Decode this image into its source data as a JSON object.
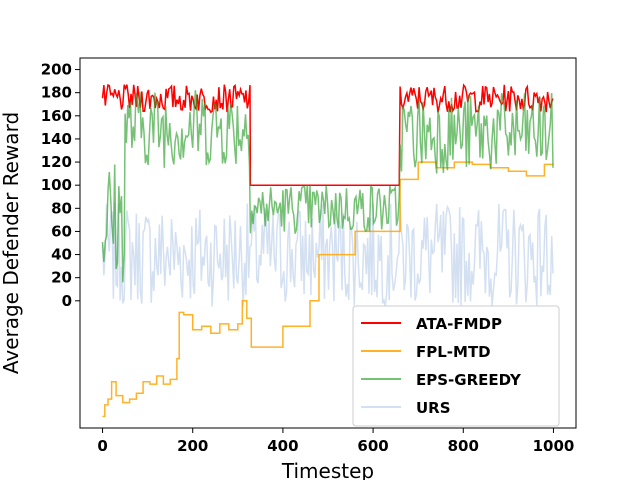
{
  "chart_data": {
    "type": "line",
    "title": "",
    "xlabel": "Timestep",
    "ylabel": "Average Defender Reward",
    "xlim": [
      -50,
      1050
    ],
    "ylim": [
      -110,
      210
    ],
    "x_ticks": [
      0,
      200,
      400,
      600,
      800,
      1000
    ],
    "y_ticks": [
      0,
      20,
      40,
      60,
      80,
      100,
      120,
      140,
      160,
      180,
      200
    ],
    "grid": false,
    "legend_position": "lower-right",
    "series": [
      {
        "name": "ATA-FMDP",
        "color": "#ff0000",
        "segments": [
          {
            "x_start": 0,
            "x_end": 328,
            "mean": 175,
            "noise": 12
          },
          {
            "x_start": 328,
            "x_end": 660,
            "mean": 100,
            "noise": 0
          },
          {
            "x_start": 660,
            "x_end": 1000,
            "mean": 175,
            "noise": 12
          }
        ]
      },
      {
        "name": "FPL-MTD",
        "color": "#ffa500",
        "points": [
          [
            0,
            -100
          ],
          [
            5,
            -90
          ],
          [
            12,
            -85
          ],
          [
            20,
            -70
          ],
          [
            30,
            -82
          ],
          [
            45,
            -88
          ],
          [
            60,
            -85
          ],
          [
            75,
            -80
          ],
          [
            90,
            -70
          ],
          [
            105,
            -72
          ],
          [
            120,
            -65
          ],
          [
            135,
            -72
          ],
          [
            150,
            -68
          ],
          [
            165,
            -50
          ],
          [
            170,
            -10
          ],
          [
            180,
            -12
          ],
          [
            200,
            -25
          ],
          [
            220,
            -22
          ],
          [
            240,
            -28
          ],
          [
            260,
            -20
          ],
          [
            280,
            -25
          ],
          [
            300,
            -20
          ],
          [
            310,
            0
          ],
          [
            320,
            -15
          ],
          [
            330,
            -40
          ],
          [
            350,
            -40
          ],
          [
            370,
            -40
          ],
          [
            385,
            -40
          ],
          [
            400,
            -22
          ],
          [
            420,
            -22
          ],
          [
            440,
            -22
          ],
          [
            460,
            0
          ],
          [
            470,
            0
          ],
          [
            480,
            40
          ],
          [
            500,
            40
          ],
          [
            520,
            40
          ],
          [
            540,
            40
          ],
          [
            560,
            60
          ],
          [
            580,
            60
          ],
          [
            600,
            60
          ],
          [
            620,
            60
          ],
          [
            640,
            60
          ],
          [
            660,
            105
          ],
          [
            700,
            120
          ],
          [
            740,
            115
          ],
          [
            780,
            120
          ],
          [
            820,
            118
          ],
          [
            860,
            115
          ],
          [
            900,
            112
          ],
          [
            940,
            108
          ],
          [
            980,
            118
          ],
          [
            1000,
            118
          ]
        ]
      },
      {
        "name": "EPS-GREEDY",
        "color": "#2ca02c",
        "segments": [
          {
            "x_start": 0,
            "x_end": 50,
            "mean": 70,
            "noise": 55
          },
          {
            "x_start": 50,
            "x_end": 328,
            "mean": 150,
            "noise": 35
          },
          {
            "x_start": 328,
            "x_end": 660,
            "mean": 80,
            "noise": 22
          },
          {
            "x_start": 660,
            "x_end": 1000,
            "mean": 145,
            "noise": 35
          }
        ]
      },
      {
        "name": "URS",
        "color": "#aec7e8",
        "segments": [
          {
            "x_start": 0,
            "x_end": 1000,
            "mean": 40,
            "noise": 45
          }
        ]
      }
    ]
  }
}
